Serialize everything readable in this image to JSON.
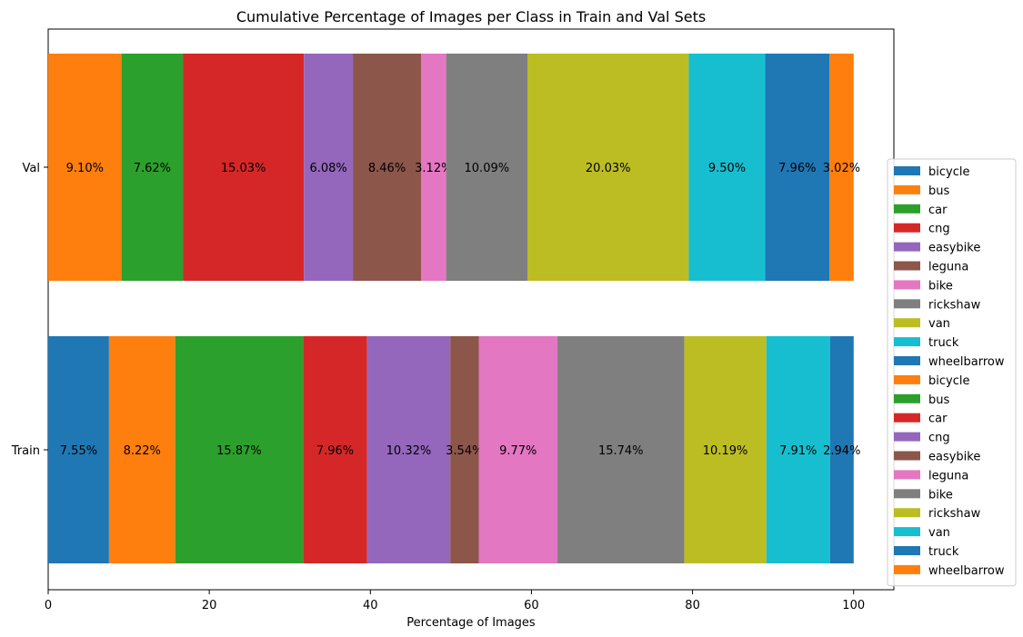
{
  "chart_data": {
    "type": "bar",
    "orientation": "horizontal",
    "stacked": true,
    "title": "Cumulative Percentage of Images per Class in Train and Val Sets",
    "xlabel": "Percentage of Images",
    "ylabel": "",
    "xlim": [
      0,
      105
    ],
    "xticks": [
      0,
      20,
      40,
      60,
      80,
      100
    ],
    "categories": [
      "Train",
      "Val"
    ],
    "grid": false,
    "legend_position": "right",
    "bars": [
      {
        "category": "Val",
        "segments": [
          {
            "value": 9.1,
            "label": "9.10%",
            "color": "#ff7f0e"
          },
          {
            "value": 7.62,
            "label": "7.62%",
            "color": "#2ca02c"
          },
          {
            "value": 15.03,
            "label": "15.03%",
            "color": "#d62728"
          },
          {
            "value": 6.08,
            "label": "6.08%",
            "color": "#9467bd"
          },
          {
            "value": 8.46,
            "label": "8.46%",
            "color": "#8c564b"
          },
          {
            "value": 3.12,
            "label": "3.12%",
            "color": "#e377c2"
          },
          {
            "value": 10.09,
            "label": "10.09%",
            "color": "#7f7f7f"
          },
          {
            "value": 20.03,
            "label": "20.03%",
            "color": "#bcbd22"
          },
          {
            "value": 9.5,
            "label": "9.50%",
            "color": "#17becf"
          },
          {
            "value": 7.96,
            "label": "7.96%",
            "color": "#1f77b4"
          },
          {
            "value": 3.02,
            "label": "3.02%",
            "color": "#ff7f0e"
          }
        ]
      },
      {
        "category": "Train",
        "segments": [
          {
            "value": 7.55,
            "label": "7.55%",
            "color": "#1f77b4"
          },
          {
            "value": 8.22,
            "label": "8.22%",
            "color": "#ff7f0e"
          },
          {
            "value": 15.87,
            "label": "15.87%",
            "color": "#2ca02c"
          },
          {
            "value": 7.96,
            "label": "7.96%",
            "color": "#d62728"
          },
          {
            "value": 10.32,
            "label": "10.32%",
            "color": "#9467bd"
          },
          {
            "value": 3.54,
            "label": "3.54%",
            "color": "#8c564b"
          },
          {
            "value": 9.77,
            "label": "9.77%",
            "color": "#e377c2"
          },
          {
            "value": 15.74,
            "label": "15.74%",
            "color": "#7f7f7f"
          },
          {
            "value": 10.19,
            "label": "10.19%",
            "color": "#bcbd22"
          },
          {
            "value": 7.91,
            "label": "7.91%",
            "color": "#17becf"
          },
          {
            "value": 2.94,
            "label": "2.94%",
            "color": "#1f77b4"
          }
        ]
      }
    ],
    "legend": [
      {
        "name": "bicycle",
        "color": "#1f77b4"
      },
      {
        "name": "bus",
        "color": "#ff7f0e"
      },
      {
        "name": "car",
        "color": "#2ca02c"
      },
      {
        "name": "cng",
        "color": "#d62728"
      },
      {
        "name": "easybike",
        "color": "#9467bd"
      },
      {
        "name": "leguna",
        "color": "#8c564b"
      },
      {
        "name": "bike",
        "color": "#e377c2"
      },
      {
        "name": "rickshaw",
        "color": "#7f7f7f"
      },
      {
        "name": "van",
        "color": "#bcbd22"
      },
      {
        "name": "truck",
        "color": "#17becf"
      },
      {
        "name": "wheelbarrow",
        "color": "#1f77b4"
      },
      {
        "name": "bicycle",
        "color": "#ff7f0e"
      },
      {
        "name": "bus",
        "color": "#2ca02c"
      },
      {
        "name": "car",
        "color": "#d62728"
      },
      {
        "name": "cng",
        "color": "#9467bd"
      },
      {
        "name": "easybike",
        "color": "#8c564b"
      },
      {
        "name": "leguna",
        "color": "#e377c2"
      },
      {
        "name": "bike",
        "color": "#7f7f7f"
      },
      {
        "name": "rickshaw",
        "color": "#bcbd22"
      },
      {
        "name": "van",
        "color": "#17becf"
      },
      {
        "name": "truck",
        "color": "#1f77b4"
      },
      {
        "name": "wheelbarrow",
        "color": "#ff7f0e"
      }
    ]
  }
}
